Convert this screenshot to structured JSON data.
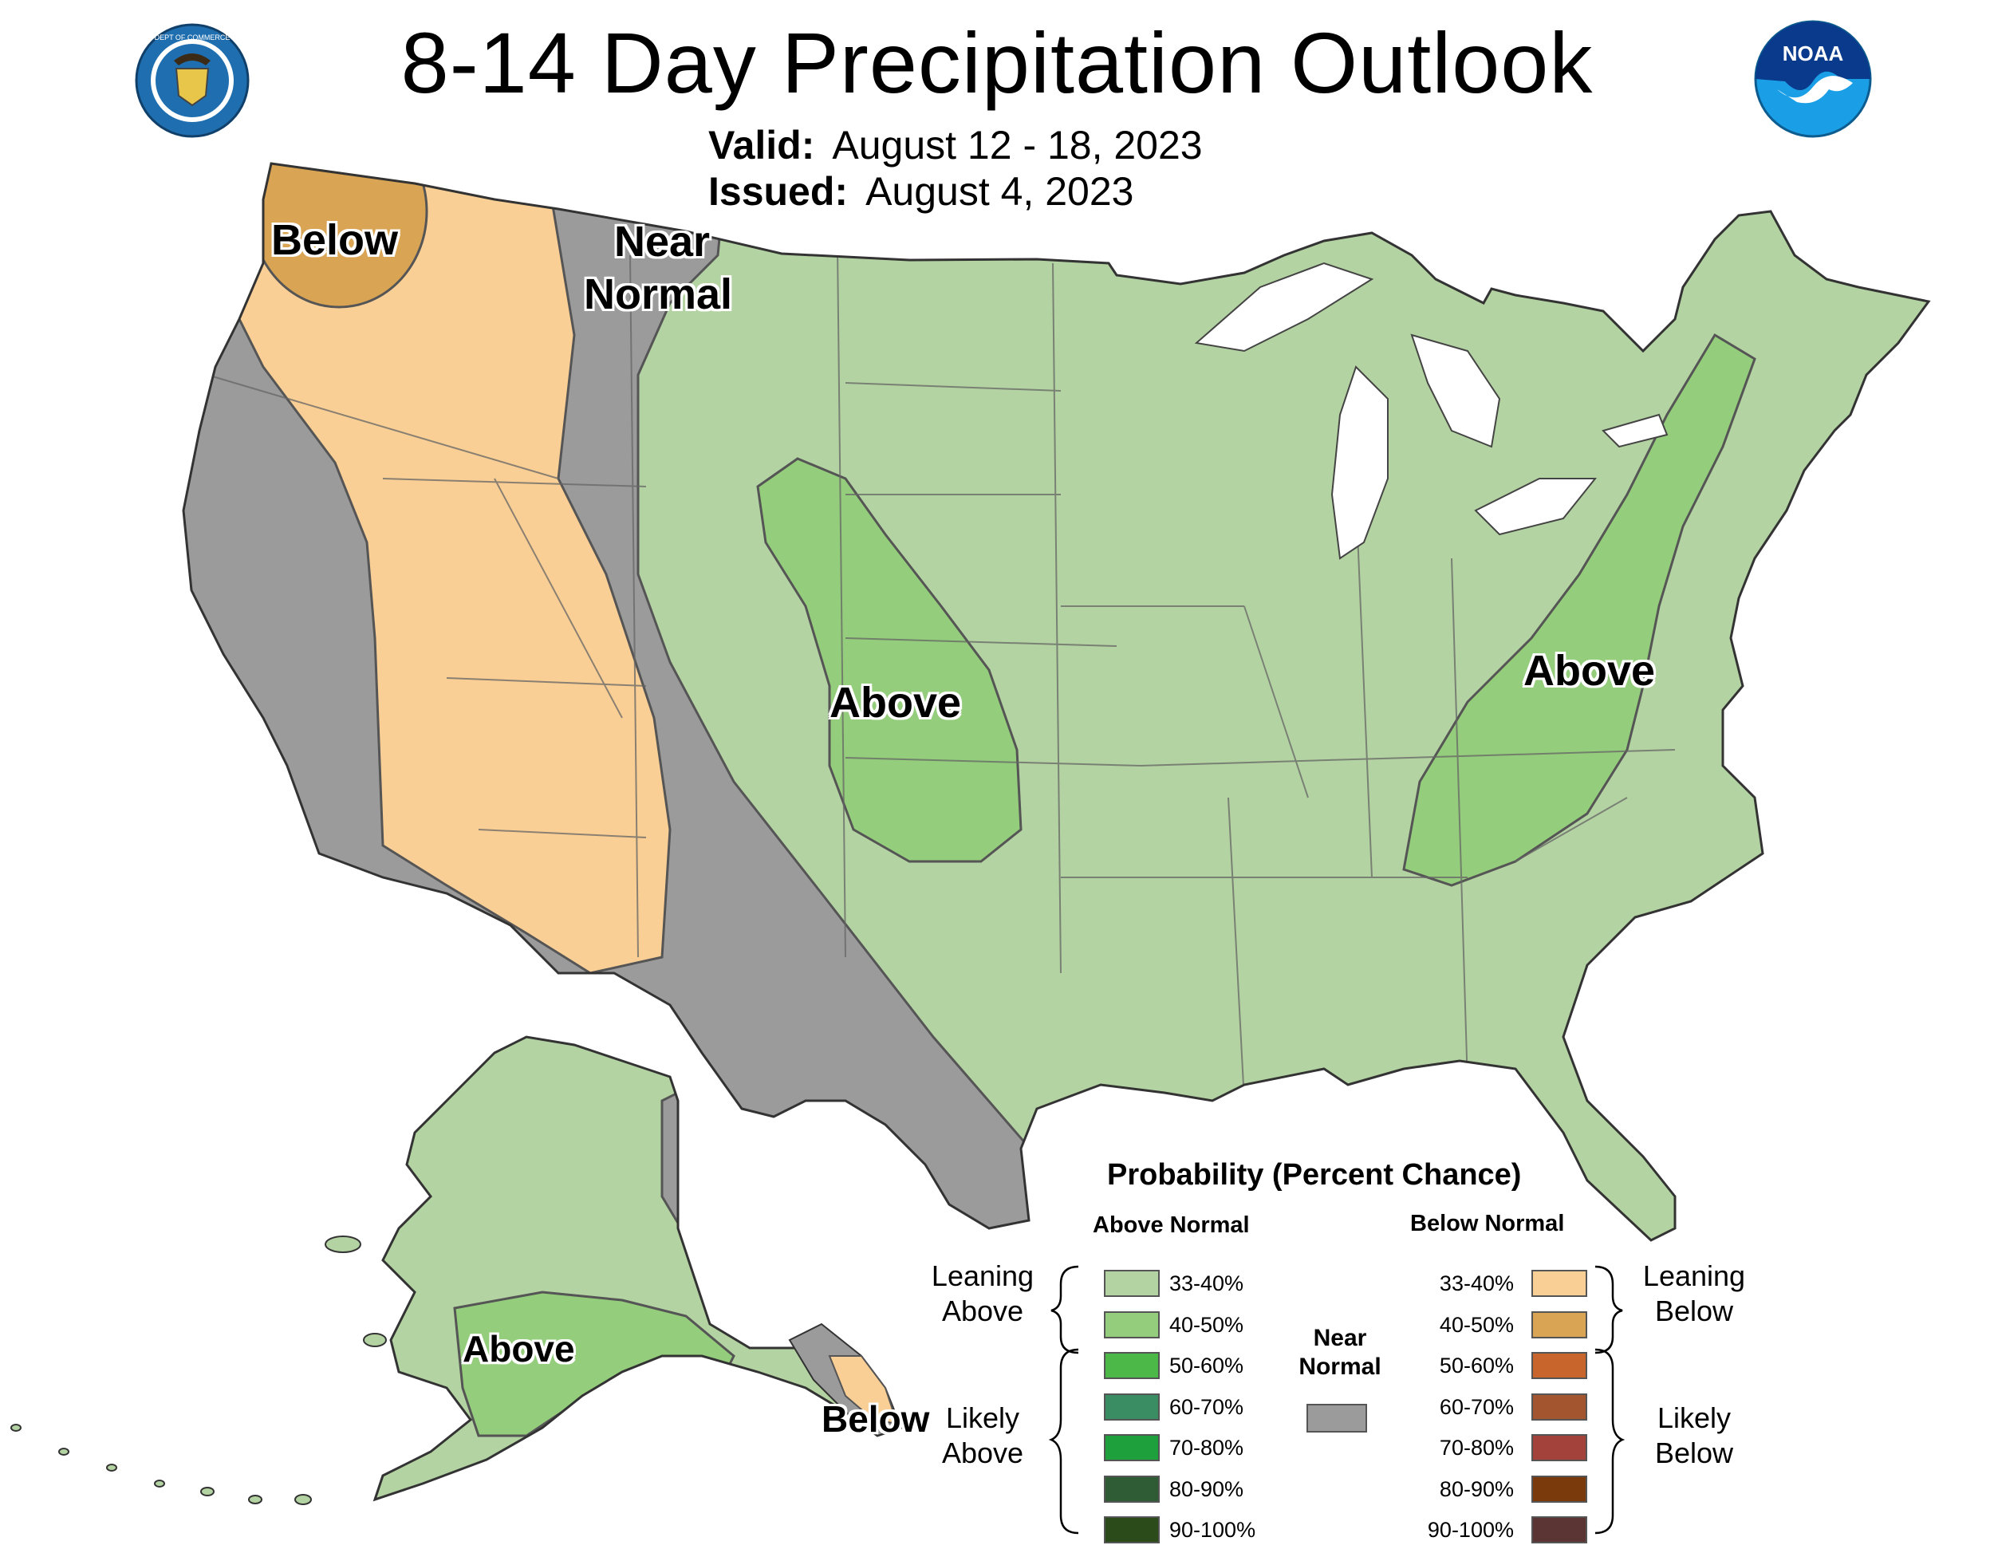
{
  "header": {
    "title": "8-14 Day Precipitation Outlook",
    "valid_label": "Valid:",
    "valid_value": "August 12 - 18, 2023",
    "issued_label": "Issued:",
    "issued_value": "August 4, 2023"
  },
  "logos": {
    "commerce_seal_text": "DEPARTMENT OF COMMERCE · UNITED STATES OF AMERICA",
    "noaa_text": "NOAA"
  },
  "regions": {
    "pnw_below": "Below",
    "near_normal_1": "Near",
    "near_normal_2": "Normal",
    "plains_above": "Above",
    "east_above": "Above",
    "alaska_above": "Above",
    "alaska_below": "Below"
  },
  "legend": {
    "title": "Probability (Percent Chance)",
    "above_header": "Above Normal",
    "below_header": "Below Normal",
    "leaning_above": "Leaning Above",
    "likely_above": "Likely Above",
    "leaning_below": "Leaning Below",
    "likely_below": "Likely Below",
    "near_normal": "Near Normal",
    "near_color": "#9b9b9b",
    "above": [
      {
        "range": "33-40%",
        "color": "#b4d3a2"
      },
      {
        "range": "40-50%",
        "color": "#94cd7b"
      },
      {
        "range": "50-60%",
        "color": "#4cb848"
      },
      {
        "range": "60-70%",
        "color": "#3a8c62"
      },
      {
        "range": "70-80%",
        "color": "#1ea03c"
      },
      {
        "range": "80-90%",
        "color": "#2f5c34"
      },
      {
        "range": "90-100%",
        "color": "#2b4c1a"
      }
    ],
    "below": [
      {
        "range": "33-40%",
        "color": "#f9cf95"
      },
      {
        "range": "40-50%",
        "color": "#d9a454"
      },
      {
        "range": "50-60%",
        "color": "#c8652c"
      },
      {
        "range": "60-70%",
        "color": "#a35530"
      },
      {
        "range": "70-80%",
        "color": "#a3423a"
      },
      {
        "range": "80-90%",
        "color": "#7b3a0b"
      },
      {
        "range": "90-100%",
        "color": "#5b3434"
      }
    ]
  }
}
